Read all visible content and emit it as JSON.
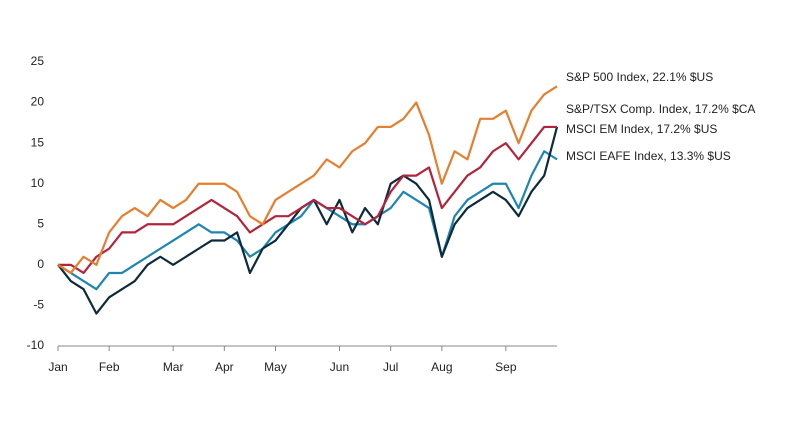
{
  "chart_data": {
    "type": "line",
    "categories": [
      "Jan",
      null,
      null,
      null,
      "Feb",
      null,
      null,
      null,
      null,
      "Mar",
      null,
      null,
      null,
      "Apr",
      null,
      null,
      null,
      "May",
      null,
      null,
      null,
      null,
      "Jun",
      null,
      null,
      null,
      "Jul",
      null,
      null,
      null,
      "Aug",
      null,
      null,
      null,
      null,
      "Sep",
      null,
      null,
      null,
      null
    ],
    "series": [
      {
        "name": "S&P 500 Index, 22.1% $US",
        "color": "#e67e2e",
        "values": [
          0,
          -1,
          1,
          0,
          4,
          6,
          7,
          6,
          8,
          7,
          8,
          10,
          10,
          10,
          9,
          6,
          5,
          8,
          9,
          10,
          11,
          13,
          12,
          14,
          15,
          17,
          17,
          18,
          20,
          16,
          10,
          14,
          13,
          18,
          18,
          19,
          15,
          19,
          21,
          22
        ]
      },
      {
        "name": "S&P/TSX Comp. Index, 17.2% $CA",
        "color": "#b3243a",
        "values": [
          0,
          0,
          -1,
          1,
          2,
          4,
          4,
          5,
          5,
          5,
          6,
          7,
          8,
          7,
          6,
          4,
          5,
          6,
          6,
          7,
          8,
          7,
          7,
          6,
          5,
          6,
          9,
          11,
          11,
          12,
          7,
          9,
          11,
          12,
          14,
          15,
          13,
          15,
          17,
          17
        ]
      },
      {
        "name": "MSCI EM Index, 17.2% $US",
        "color": "#0e2a3d",
        "values": [
          0,
          -2,
          -3,
          -6,
          -4,
          -3,
          -2,
          0,
          1,
          0,
          1,
          2,
          3,
          3,
          4,
          -1,
          2,
          3,
          5,
          7,
          8,
          5,
          8,
          4,
          7,
          5,
          10,
          11,
          10,
          8,
          1,
          5,
          7,
          8,
          9,
          8,
          6,
          9,
          11,
          17
        ]
      },
      {
        "name": "MSCI EAFE Index, 13.3% $US",
        "color": "#1e85b1",
        "values": [
          0,
          -1,
          -2,
          -3,
          -1,
          -1,
          0,
          1,
          2,
          3,
          4,
          5,
          4,
          4,
          3,
          1,
          2,
          4,
          5,
          6,
          8,
          7,
          6,
          5,
          5,
          6,
          7,
          9,
          8,
          7,
          1,
          6,
          8,
          9,
          10,
          10,
          7,
          11,
          14,
          13
        ]
      }
    ],
    "ylim": [
      -10,
      25
    ],
    "yticks": [
      -10,
      -5,
      0,
      5,
      10,
      15,
      20,
      25
    ],
    "grid": false
  }
}
